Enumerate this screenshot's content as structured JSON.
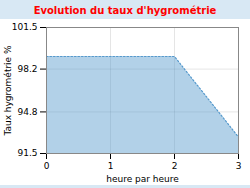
{
  "chart_data": {
    "type": "area",
    "title": "Evolution du taux d'hygrométrie",
    "x_label": "heure par heure",
    "y_label": "Taux hygrométrie %",
    "x": [
      0,
      2,
      3
    ],
    "values": [
      99.2,
      99.2,
      92.8
    ],
    "xlim": [
      0,
      3
    ],
    "ylim": [
      91.5,
      101.5
    ],
    "xticks": [
      0,
      1,
      2,
      3
    ],
    "yticks": [
      91.5,
      94.8,
      98.2,
      101.5
    ],
    "color": "#5599cc",
    "line_style": "dotted",
    "grid": true
  }
}
